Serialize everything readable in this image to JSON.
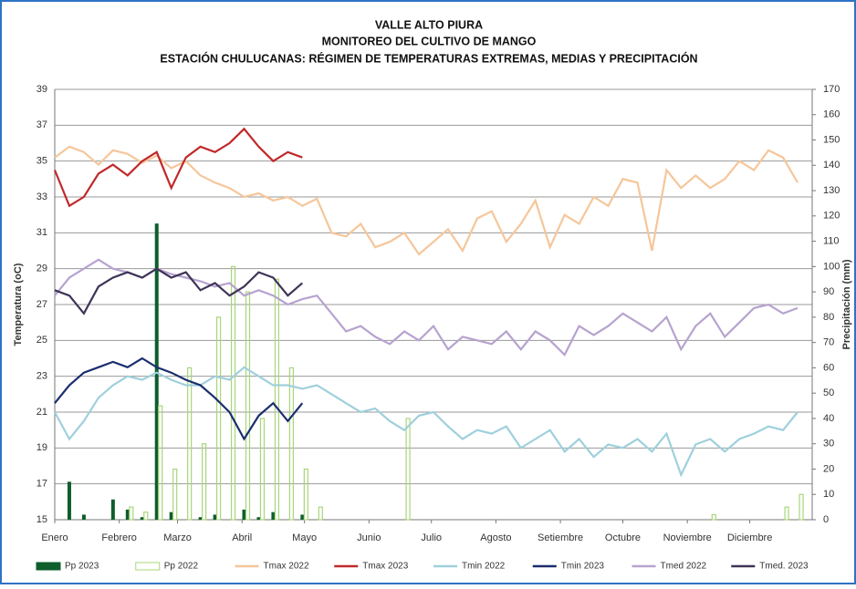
{
  "chart_data": {
    "type": "line",
    "title": [
      "VALLE  ALTO PIURA",
      "MONITOREO DEL CULTIVO DE MANGO",
      "ESTACIÓN CHULUCANAS: RÉGIMEN DE TEMPERATURAS EXTREMAS, MEDIAS Y PRECIPITACIÓN"
    ],
    "y_label": "Temperatura (oC)",
    "y2_label": "Precipitación (mm)",
    "x": [
      1,
      8,
      15,
      22,
      29,
      36,
      43,
      50,
      57,
      64,
      71,
      78,
      85,
      92,
      99,
      106,
      113,
      120,
      127,
      134,
      141,
      148,
      155,
      162,
      169,
      176,
      183,
      190,
      197,
      204,
      211,
      218,
      225,
      232,
      239,
      246,
      253,
      260,
      267,
      274,
      281,
      288,
      295,
      302,
      309,
      316,
      323,
      330,
      337,
      344,
      351,
      358
    ],
    "xlim": [
      1,
      365
    ],
    "xticks": [
      {
        "value": 1,
        "label": "Enero"
      },
      {
        "value": 32,
        "label": "Febrero"
      },
      {
        "value": 60,
        "label": "Marzo"
      },
      {
        "value": 91,
        "label": "Abril"
      },
      {
        "value": 121,
        "label": "Mayo"
      },
      {
        "value": 152,
        "label": "Junio"
      },
      {
        "value": 182,
        "label": "Julio"
      },
      {
        "value": 213,
        "label": "Agosto"
      },
      {
        "value": 244,
        "label": "Setiembre"
      },
      {
        "value": 274,
        "label": "Octubre"
      },
      {
        "value": 305,
        "label": "Noviembre"
      },
      {
        "value": 335,
        "label": "Diciembre"
      }
    ],
    "ylim": [
      15,
      39
    ],
    "yticks": [
      15,
      17,
      19,
      21,
      23,
      25,
      27,
      29,
      31,
      33,
      35,
      37,
      39
    ],
    "y2lim": [
      0,
      170
    ],
    "y2ticks": [
      0,
      10,
      20,
      30,
      40,
      50,
      60,
      70,
      80,
      90,
      100,
      110,
      120,
      130,
      140,
      150,
      160,
      170
    ],
    "grid": true,
    "series": [
      {
        "name": "Pp 2023",
        "type": "bar",
        "axis": "y2",
        "color": "#0e5e2c",
        "values": [
          0,
          15,
          2,
          0,
          8,
          4,
          1,
          117,
          3,
          0,
          1,
          2,
          0,
          4,
          1,
          3,
          0,
          2,
          null,
          null,
          null,
          null,
          null,
          null,
          null,
          null,
          null,
          null,
          null,
          null,
          null,
          null,
          null,
          null,
          null,
          null,
          null,
          null,
          null,
          null,
          null,
          null,
          null,
          null,
          null,
          null,
          null,
          null,
          null,
          null,
          null,
          null
        ]
      },
      {
        "name": "Pp 2022",
        "type": "bar",
        "axis": "y2",
        "color": "#a8d67a",
        "values": [
          0,
          0,
          0,
          0,
          0,
          5,
          3,
          45,
          20,
          60,
          30,
          80,
          100,
          90,
          40,
          95,
          60,
          20,
          5,
          0,
          0,
          0,
          0,
          0,
          40,
          0,
          0,
          0,
          0,
          0,
          0,
          0,
          0,
          0,
          0,
          0,
          0,
          0,
          0,
          0,
          0,
          0,
          0,
          0,
          0,
          2,
          0,
          0,
          0,
          0,
          5,
          10
        ]
      },
      {
        "name": "Tmax 2022",
        "type": "line",
        "color": "#f5c69a",
        "values": [
          35.2,
          35.8,
          35.5,
          34.8,
          35.6,
          35.4,
          34.9,
          35.3,
          34.6,
          35.0,
          34.2,
          33.8,
          33.5,
          33.0,
          33.2,
          32.8,
          33.0,
          32.5,
          32.9,
          31.0,
          30.8,
          31.5,
          30.2,
          30.5,
          31.0,
          29.8,
          30.5,
          31.2,
          30.0,
          31.8,
          32.2,
          30.5,
          31.5,
          32.8,
          30.2,
          32.0,
          31.5,
          33.0,
          32.5,
          34.0,
          33.8,
          30.0,
          34.5,
          33.5,
          34.2,
          33.5,
          34.0,
          35.0,
          34.5,
          35.6,
          35.2,
          33.8
        ]
      },
      {
        "name": "Tmax 2023",
        "type": "line",
        "color": "#c0282a",
        "values": [
          34.5,
          32.5,
          33.0,
          34.3,
          34.8,
          34.2,
          35.0,
          35.5,
          33.5,
          35.2,
          35.8,
          35.5,
          36.0,
          36.8,
          35.8,
          35.0,
          35.5,
          35.2,
          null,
          null,
          null,
          null,
          null,
          null,
          null,
          null,
          null,
          null,
          null,
          null,
          null,
          null,
          null,
          null,
          null,
          null,
          null,
          null,
          null,
          null,
          null,
          null,
          null,
          null,
          null,
          null,
          null,
          null,
          null,
          null,
          null,
          null
        ]
      },
      {
        "name": "Tmin 2022",
        "type": "line",
        "color": "#9fd0dc",
        "values": [
          21.0,
          19.5,
          20.5,
          21.8,
          22.5,
          23.0,
          22.8,
          23.2,
          22.8,
          22.5,
          22.5,
          23.0,
          22.8,
          23.5,
          23.0,
          22.5,
          22.5,
          22.3,
          22.5,
          22.0,
          21.5,
          21.0,
          21.2,
          20.5,
          20.0,
          20.8,
          21.0,
          20.2,
          19.5,
          20.0,
          19.8,
          20.2,
          19.0,
          19.5,
          20.0,
          18.8,
          19.5,
          18.5,
          19.2,
          19.0,
          19.5,
          18.8,
          19.8,
          17.5,
          19.2,
          19.5,
          18.8,
          19.5,
          19.8,
          20.2,
          20.0,
          21.0
        ]
      },
      {
        "name": "Tmin 2023",
        "type": "line",
        "color": "#1a2e6e",
        "values": [
          21.5,
          22.5,
          23.2,
          23.5,
          23.8,
          23.5,
          24.0,
          23.5,
          23.2,
          22.8,
          22.5,
          21.8,
          21.0,
          19.5,
          20.8,
          21.5,
          20.5,
          21.5,
          null,
          null,
          null,
          null,
          null,
          null,
          null,
          null,
          null,
          null,
          null,
          null,
          null,
          null,
          null,
          null,
          null,
          null,
          null,
          null,
          null,
          null,
          null,
          null,
          null,
          null,
          null,
          null,
          null,
          null,
          null,
          null,
          null,
          null
        ]
      },
      {
        "name": "Tmed 2022",
        "type": "line",
        "color": "#b6a3cf",
        "values": [
          27.5,
          28.5,
          29.0,
          29.5,
          29.0,
          28.8,
          28.5,
          29.0,
          28.7,
          28.5,
          28.3,
          28.0,
          28.2,
          27.5,
          27.8,
          27.5,
          27.0,
          27.3,
          27.5,
          26.5,
          25.5,
          25.8,
          25.2,
          24.8,
          25.5,
          25.0,
          25.8,
          24.5,
          25.2,
          25.0,
          24.8,
          25.5,
          24.5,
          25.5,
          25.0,
          24.2,
          25.8,
          25.3,
          25.8,
          26.5,
          26.0,
          25.5,
          26.3,
          24.5,
          25.8,
          26.5,
          25.2,
          26.0,
          26.8,
          27.0,
          26.5,
          26.8
        ]
      },
      {
        "name": "Tmed. 2023",
        "type": "line",
        "color": "#3e3356",
        "values": [
          27.8,
          27.5,
          26.5,
          28.0,
          28.5,
          28.8,
          28.5,
          29.0,
          28.5,
          28.8,
          27.8,
          28.2,
          27.5,
          28.0,
          28.8,
          28.5,
          27.5,
          28.2,
          null,
          null,
          null,
          null,
          null,
          null,
          null,
          null,
          null,
          null,
          null,
          null,
          null,
          null,
          null,
          null,
          null,
          null,
          null,
          null,
          null,
          null,
          null,
          null,
          null,
          null,
          null,
          null,
          null,
          null,
          null,
          null,
          null,
          null
        ]
      }
    ]
  }
}
